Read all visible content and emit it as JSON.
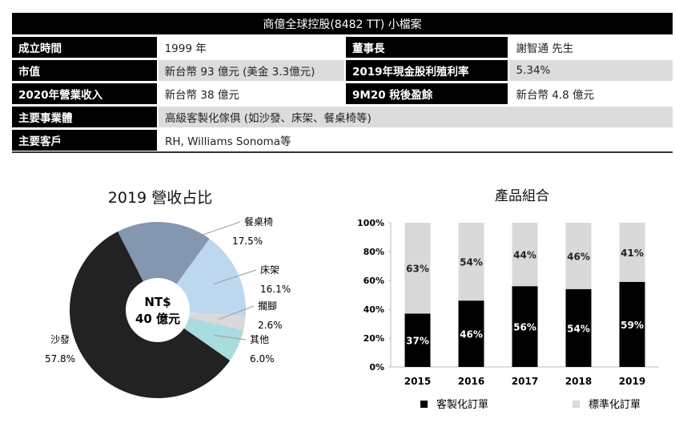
{
  "table": {
    "title": "商億全球控股(8482 TT) 小檔案",
    "rows": [
      {
        "l1": "成立時間",
        "v1": "1999 年",
        "l2": "董事長",
        "v2": "謝智通 先生"
      },
      {
        "l1": "市值",
        "v1": "新台幣 93 億元 (美金 3.3億元)",
        "l2": "2019年現金股利殖利率",
        "v2": "5.34%"
      },
      {
        "l1": "2020年營業收入",
        "v1": "新台幣 38 億元",
        "l2": "9M20 稅後盈餘",
        "v2": "新台幣 4.8 億元"
      },
      {
        "l1": "主要事業體",
        "v1": "高級客製化傢俱 (如沙發、床架、餐桌椅等)"
      },
      {
        "l1": "主要客戶",
        "v1": "RH, Williams Sonoma等"
      }
    ]
  },
  "chart_data": [
    {
      "type": "pie",
      "title": "2019 營收占比",
      "center_label": [
        "NT$",
        "40 億元"
      ],
      "slices": [
        {
          "label": "餐桌椅",
          "value": 17.5,
          "value_label": "17.5%",
          "color": "#8497b0"
        },
        {
          "label": "床架",
          "value": 16.1,
          "value_label": "16.1%",
          "color": "#bdd7ee"
        },
        {
          "label": "擱腳",
          "value": 2.6,
          "value_label": "2.6%",
          "color": "#d9d9d9"
        },
        {
          "label": "其他",
          "value": 6.0,
          "value_label": "6.0%",
          "color": "#a9dcdf"
        },
        {
          "label": "沙發",
          "value": 57.8,
          "value_label": "57.8%",
          "color": "#222222"
        }
      ]
    },
    {
      "type": "bar",
      "stacked": true,
      "title": "產品組合",
      "categories": [
        "2015",
        "2016",
        "2017",
        "2018",
        "2019"
      ],
      "series": [
        {
          "name": "客製化訂單",
          "values": [
            37,
            46,
            56,
            54,
            59
          ],
          "color": "#000000"
        },
        {
          "name": "標準化訂單",
          "values": [
            63,
            54,
            44,
            46,
            41
          ],
          "color": "#d9d9d9"
        }
      ],
      "ylim": [
        0,
        100
      ],
      "yticks": [
        "0%",
        "20%",
        "40%",
        "60%",
        "80%",
        "100%"
      ],
      "legend": "bottom"
    }
  ]
}
